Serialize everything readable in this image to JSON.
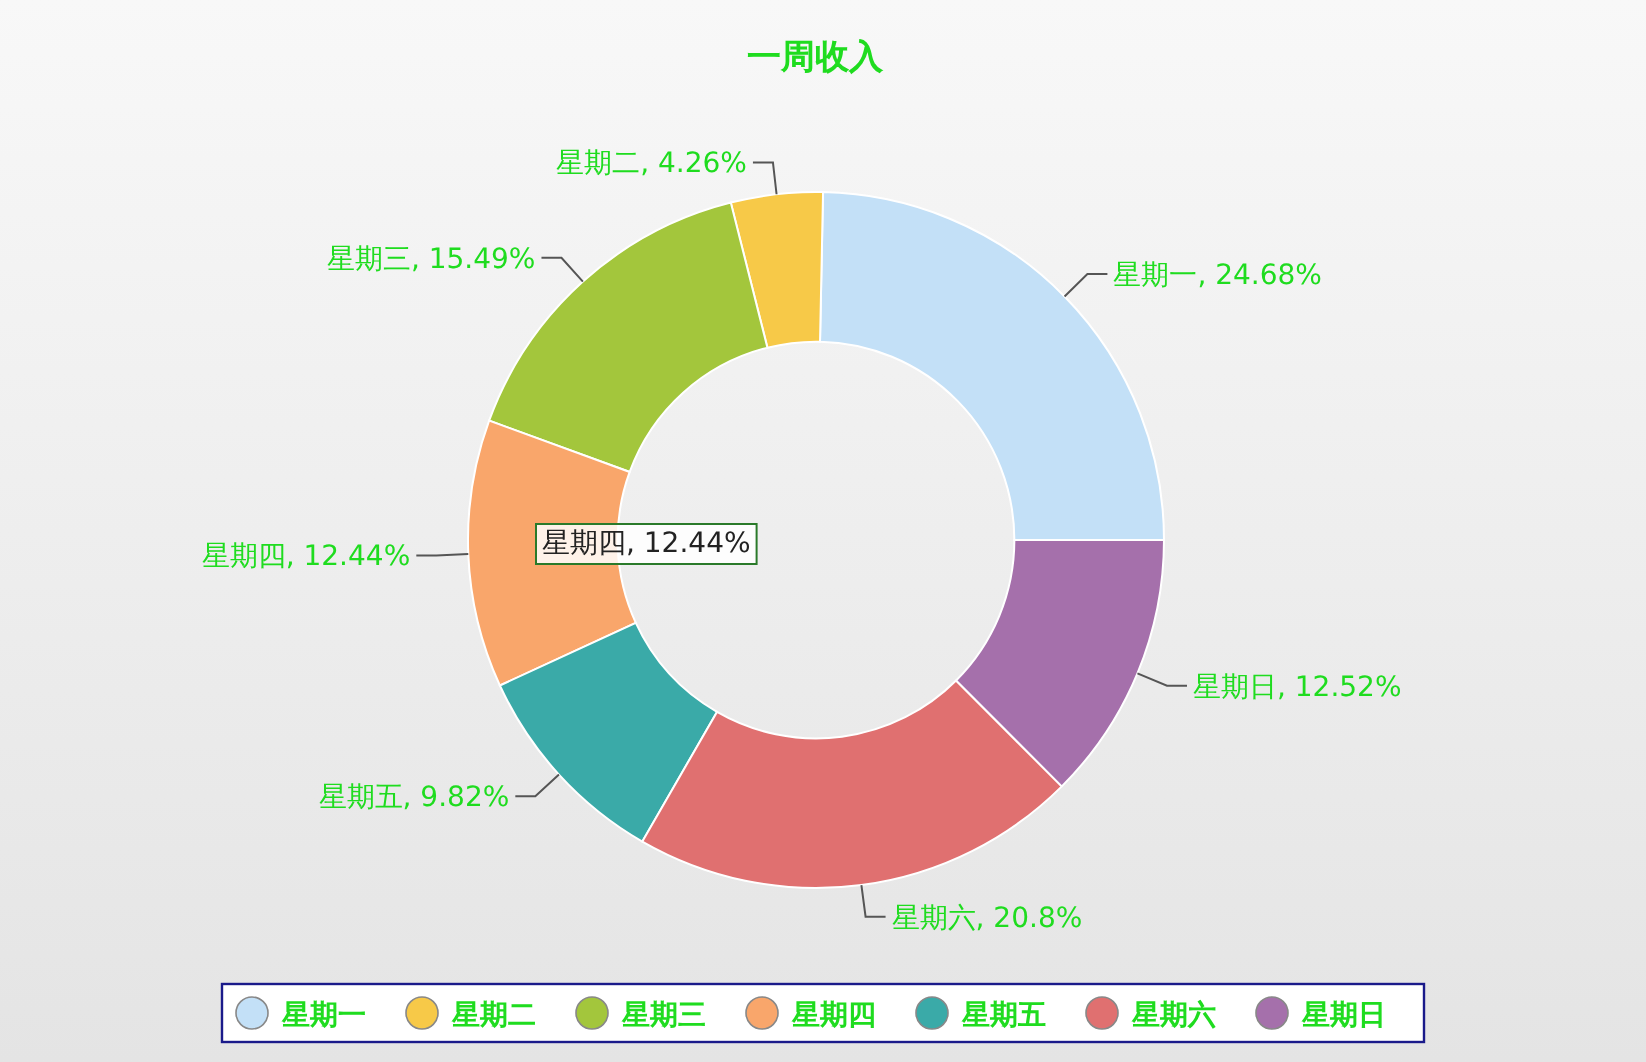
{
  "chart_data": {
    "type": "donut",
    "title": "一周收入",
    "categories": [
      "星期一",
      "星期二",
      "星期三",
      "星期四",
      "星期五",
      "星期六",
      "星期日"
    ],
    "values": [
      24.68,
      4.26,
      15.49,
      12.44,
      9.82,
      20.8,
      12.52
    ],
    "colors": [
      "#c3e0f7",
      "#f7c948",
      "#a3c63c",
      "#f9a66b",
      "#3aaaa8",
      "#e07070",
      "#a570ab"
    ],
    "value_labels": [
      "星期一, 24.68%",
      "星期二, 4.26%",
      "星期三, 15.49%",
      "星期四, 12.44%",
      "星期五, 9.82%",
      "星期六, 20.8%",
      "星期日, 12.52%"
    ],
    "annotations": [
      "星期四, 12.44%"
    ],
    "legend": "bottom"
  }
}
